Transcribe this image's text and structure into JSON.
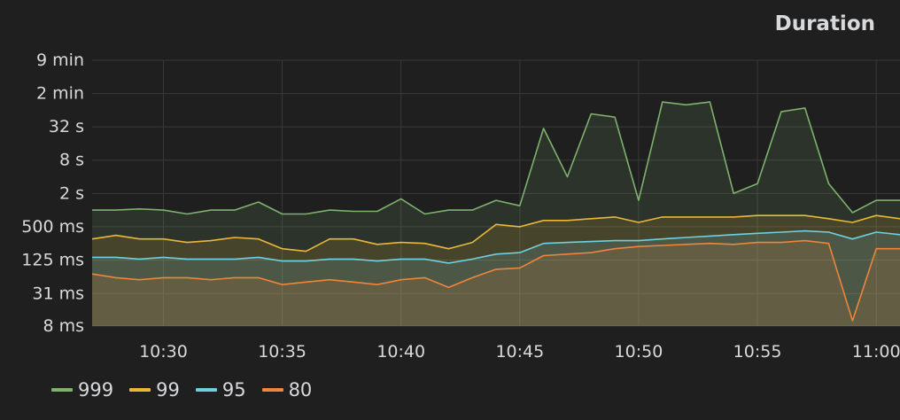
{
  "panel": {
    "title": "Duration"
  },
  "chart_data": {
    "type": "area",
    "title": "Duration",
    "xlabel": "",
    "ylabel": "",
    "yscale": "log2",
    "unit": "seconds",
    "grid": true,
    "legend": "bottom-left",
    "xlim": [
      "10:27",
      "11:01"
    ],
    "x_ticks": [
      "10:30",
      "10:35",
      "10:40",
      "10:45",
      "10:50",
      "10:55",
      "11:00"
    ],
    "y_ticks": [
      {
        "value": 0.008,
        "label": "8 ms"
      },
      {
        "value": 0.031,
        "label": "31 ms"
      },
      {
        "value": 0.125,
        "label": "125 ms"
      },
      {
        "value": 0.5,
        "label": "500 ms"
      },
      {
        "value": 2,
        "label": "2 s"
      },
      {
        "value": 8,
        "label": "8 s"
      },
      {
        "value": 32,
        "label": "32 s"
      },
      {
        "value": 128,
        "label": "2 min"
      },
      {
        "value": 512,
        "label": "9 min"
      }
    ],
    "ylim": [
      0.008,
      512
    ],
    "x": [
      "10:27",
      "10:28",
      "10:29",
      "10:30",
      "10:31",
      "10:32",
      "10:33",
      "10:34",
      "10:35",
      "10:36",
      "10:37",
      "10:38",
      "10:39",
      "10:40",
      "10:41",
      "10:42",
      "10:43",
      "10:44",
      "10:45",
      "10:46",
      "10:47",
      "10:48",
      "10:49",
      "10:50",
      "10:51",
      "10:52",
      "10:53",
      "10:54",
      "10:55",
      "10:56",
      "10:57",
      "10:58",
      "10:59",
      "11:00",
      "11:01"
    ],
    "series": [
      {
        "name": "999",
        "color": "#7eb26d",
        "values": [
          1.0,
          1.0,
          1.05,
          1.0,
          0.85,
          1.0,
          1.0,
          1.4,
          0.85,
          0.85,
          1.0,
          0.95,
          0.95,
          1.6,
          0.85,
          1.0,
          1.0,
          1.5,
          1.2,
          30,
          4,
          55,
          48,
          1.5,
          90,
          80,
          90,
          2,
          3,
          60,
          70,
          3,
          0.9,
          1.5,
          1.5
        ]
      },
      {
        "name": "99",
        "color": "#eab839",
        "values": [
          0.3,
          0.35,
          0.3,
          0.3,
          0.26,
          0.28,
          0.32,
          0.3,
          0.2,
          0.18,
          0.3,
          0.3,
          0.24,
          0.26,
          0.25,
          0.2,
          0.26,
          0.55,
          0.5,
          0.65,
          0.65,
          0.7,
          0.75,
          0.6,
          0.75,
          0.75,
          0.75,
          0.75,
          0.8,
          0.8,
          0.8,
          0.7,
          0.6,
          0.8,
          0.7
        ]
      },
      {
        "name": "95",
        "color": "#6ed0e0",
        "values": [
          0.14,
          0.14,
          0.13,
          0.14,
          0.13,
          0.13,
          0.13,
          0.14,
          0.12,
          0.12,
          0.13,
          0.13,
          0.12,
          0.13,
          0.13,
          0.11,
          0.13,
          0.16,
          0.17,
          0.25,
          0.26,
          0.27,
          0.28,
          0.28,
          0.3,
          0.32,
          0.34,
          0.36,
          0.38,
          0.4,
          0.42,
          0.4,
          0.3,
          0.4,
          0.36
        ]
      },
      {
        "name": "80",
        "color": "#ef843c",
        "values": [
          0.07,
          0.06,
          0.055,
          0.06,
          0.06,
          0.055,
          0.06,
          0.06,
          0.045,
          0.05,
          0.055,
          0.05,
          0.045,
          0.055,
          0.06,
          0.04,
          0.06,
          0.085,
          0.09,
          0.15,
          0.16,
          0.17,
          0.2,
          0.22,
          0.23,
          0.24,
          0.25,
          0.24,
          0.26,
          0.26,
          0.28,
          0.25,
          0.01,
          0.2,
          0.2
        ]
      }
    ]
  }
}
